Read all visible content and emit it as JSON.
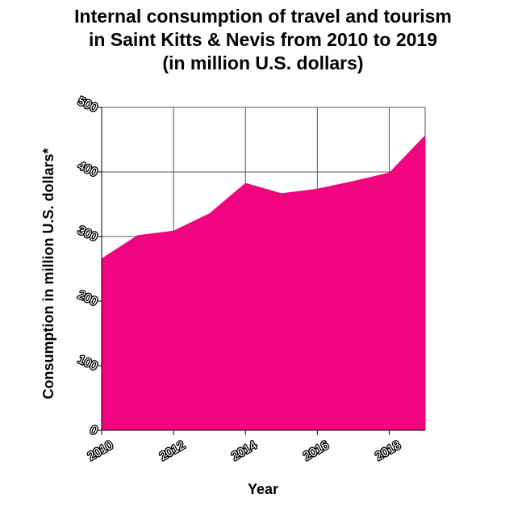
{
  "chart_data": {
    "type": "area",
    "title_lines": [
      "Internal consumption of travel and tourism",
      "in Saint Kitts & Nevis from 2010 to 2019",
      "(in million U.S. dollars)"
    ],
    "xlabel": "Year",
    "ylabel": "Consumption in million U.S. dollars*",
    "x": [
      2010,
      2011,
      2012,
      2013,
      2014,
      2015,
      2016,
      2017,
      2018,
      2019
    ],
    "series": [
      {
        "values": [
          266,
          302,
          309,
          336,
          383,
          367,
          374,
          386,
          399,
          457
        ]
      }
    ],
    "xlim": [
      2010,
      2019
    ],
    "ylim": [
      0,
      500
    ],
    "xticks": [
      2010,
      2012,
      2014,
      2016,
      2018
    ],
    "yticks": [
      0,
      100,
      200,
      300,
      400,
      500
    ],
    "grid": true,
    "fill_color": "#f0047f"
  }
}
